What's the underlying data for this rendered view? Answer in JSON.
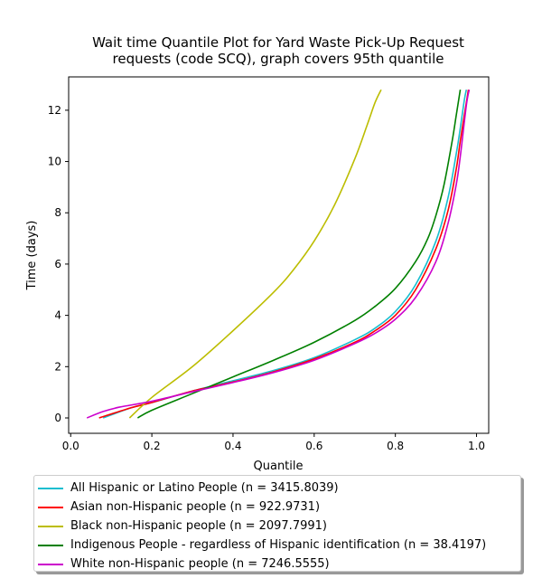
{
  "chart_data": {
    "type": "line",
    "title": "Wait time Quantile Plot for Yard Waste Pick-Up Request\nrequests (code SCQ), graph covers 95th quantile",
    "xlabel": "Quantile",
    "ylabel": "Time (days)",
    "xlim": [
      -0.005,
      1.03
    ],
    "ylim": [
      -0.6,
      13.3
    ],
    "xticks": [
      0.0,
      0.2,
      0.4,
      0.6,
      0.8,
      1.0
    ],
    "xtick_labels": [
      "0.0",
      "0.2",
      "0.4",
      "0.6",
      "0.8",
      "1.0"
    ],
    "yticks": [
      0,
      2,
      4,
      6,
      8,
      10,
      12
    ],
    "ytick_labels": [
      "0",
      "2",
      "4",
      "6",
      "8",
      "10",
      "12"
    ],
    "grid": false,
    "legend_position": "below",
    "series": [
      {
        "name": "All Hispanic or Latino People (n = 3415.8039)",
        "color": "#17becf",
        "x": [
          0.08,
          0.15,
          0.2,
          0.3,
          0.4,
          0.5,
          0.6,
          0.7,
          0.75,
          0.8,
          0.85,
          0.9,
          0.93,
          0.95,
          0.96,
          0.97,
          0.975
        ],
        "y": [
          0.0,
          0.4,
          0.6,
          1.05,
          1.45,
          1.85,
          2.35,
          3.05,
          3.5,
          4.15,
          5.2,
          6.9,
          8.6,
          10.3,
          11.3,
          12.4,
          12.8
        ]
      },
      {
        "name": "Asian non-Hispanic people (n = 922.9731)",
        "color": "#ff0000",
        "x": [
          0.07,
          0.15,
          0.2,
          0.3,
          0.4,
          0.5,
          0.6,
          0.7,
          0.75,
          0.8,
          0.85,
          0.9,
          0.93,
          0.95,
          0.96,
          0.975,
          0.98
        ],
        "y": [
          0.0,
          0.4,
          0.6,
          1.05,
          1.4,
          1.8,
          2.3,
          2.95,
          3.4,
          4.0,
          5.0,
          6.6,
          8.1,
          9.7,
          10.8,
          12.3,
          12.8
        ]
      },
      {
        "name": "Black non-Hispanic people (n = 2097.7991)",
        "color": "#bcbd00",
        "x": [
          0.145,
          0.2,
          0.3,
          0.4,
          0.5,
          0.55,
          0.6,
          0.65,
          0.7,
          0.73,
          0.75,
          0.765
        ],
        "y": [
          0.0,
          0.8,
          2.0,
          3.4,
          4.9,
          5.8,
          6.9,
          8.3,
          10.1,
          11.4,
          12.3,
          12.8
        ]
      },
      {
        "name": "Indigenous People - regardless of Hispanic identification (n = 38.4197)",
        "color": "#008000",
        "x": [
          0.165,
          0.2,
          0.3,
          0.4,
          0.5,
          0.6,
          0.7,
          0.75,
          0.8,
          0.85,
          0.88,
          0.9,
          0.92,
          0.94,
          0.95,
          0.96
        ],
        "y": [
          0.0,
          0.3,
          0.95,
          1.6,
          2.25,
          2.95,
          3.8,
          4.35,
          5.05,
          6.1,
          7.0,
          7.9,
          9.1,
          10.8,
          11.8,
          12.8
        ]
      },
      {
        "name": "White non-Hispanic people (n = 7246.5555)",
        "color": "#cc00cc",
        "x": [
          0.04,
          0.08,
          0.12,
          0.2,
          0.3,
          0.4,
          0.5,
          0.6,
          0.7,
          0.75,
          0.8,
          0.85,
          0.9,
          0.93,
          0.95,
          0.96,
          0.975,
          0.982
        ],
        "y": [
          0.0,
          0.25,
          0.42,
          0.65,
          1.02,
          1.38,
          1.77,
          2.25,
          2.9,
          3.3,
          3.85,
          4.7,
          6.1,
          7.6,
          9.1,
          10.2,
          12.2,
          12.8
        ]
      }
    ]
  }
}
